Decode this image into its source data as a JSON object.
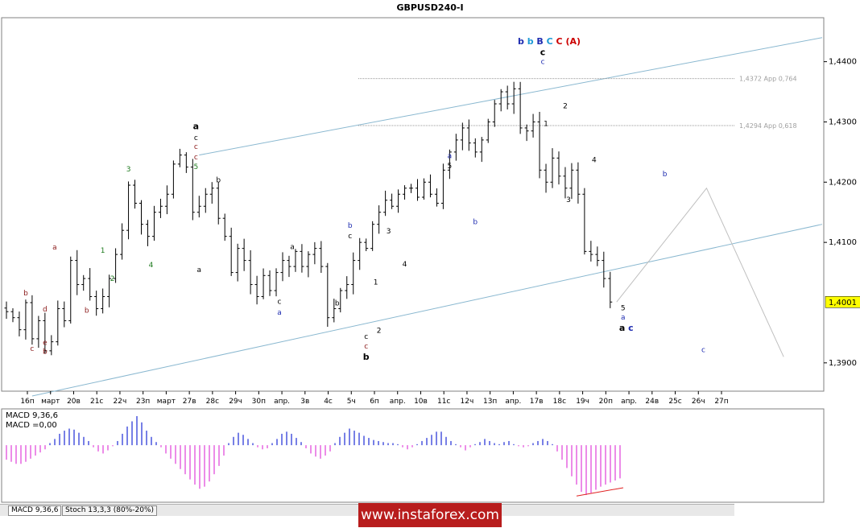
{
  "window": {
    "title": "GBPUSD240-I"
  },
  "tabs": [
    {
      "label": "MACD 9,36,6",
      "active": true
    },
    {
      "label": "Stoch 13,3,3 (80%-20%)",
      "active": false
    }
  ],
  "watermark": "www.instaforex.com",
  "colors": {
    "candle": "#000000",
    "channel": "#8ab8d0",
    "forecast": "#bfbfbf",
    "level": "#9a9a9a",
    "macd_pos": "#1d2bd6",
    "macd_neg": "#e040d8",
    "divergence": "#e02020",
    "price_label_bg": "#ffff00",
    "frame": "#808080",
    "wave_green": "#1e7a1e",
    "wave_brown": "#8b1a1a",
    "wave_blue": "#1d2bb0",
    "wave_red": "#cc0000",
    "wave_cyan": "#1d9ad6"
  },
  "chart_data": [
    {
      "type": "candlestick",
      "title": "GBPUSD240-I",
      "ylim": [
        1.3853,
        1.4473
      ],
      "y_ticks": [
        "1,4400",
        "1,4300",
        "1,4200",
        "1,4100",
        "1,3900"
      ],
      "x_ticks": [
        "16п",
        "март",
        "20в",
        "21с",
        "22ч",
        "23п",
        "март",
        "27в",
        "28с",
        "29ч",
        "30п",
        "апр.",
        "3в",
        "4с",
        "5ч",
        "6п",
        "апр.",
        "10в",
        "11с",
        "12ч",
        "13п",
        "апр.",
        "17в",
        "18с",
        "19ч",
        "20п",
        "апр.",
        "24в",
        "25с",
        "26ч",
        "27п"
      ],
      "current_price": "1,4001",
      "grid": false,
      "series": [
        {
          "name": "price",
          "close_path": [
            1.3985,
            1.3975,
            1.3955,
            1.4,
            1.394,
            1.397,
            1.392,
            1.3935,
            1.399,
            1.397,
            1.407,
            1.403,
            1.404,
            1.401,
            1.399,
            1.401,
            1.404,
            1.408,
            1.412,
            1.4195,
            1.4165,
            1.413,
            1.411,
            1.415,
            1.416,
            1.418,
            1.423,
            1.4245,
            1.4225,
            1.415,
            1.416,
            1.418,
            1.419,
            1.414,
            1.411,
            1.405,
            1.409,
            1.407,
            1.403,
            1.401,
            1.4045,
            1.402,
            1.405,
            1.407,
            1.406,
            1.4085,
            1.406,
            1.408,
            1.409,
            1.406,
            1.3975,
            1.399,
            1.402,
            1.403,
            1.407,
            1.41,
            1.409,
            1.413,
            1.415,
            1.417,
            1.416,
            1.418,
            1.419,
            1.419,
            1.4175,
            1.42,
            1.418,
            1.4165,
            1.422,
            1.425,
            1.427,
            1.429,
            1.4265,
            1.425,
            1.427,
            1.43,
            1.433,
            1.435,
            1.433,
            1.4355,
            1.429,
            1.4285,
            1.43,
            1.422,
            1.42,
            1.424,
            1.421,
            1.419,
            1.422,
            1.418,
            1.4085,
            1.408,
            1.407,
            1.404,
            1.4001
          ]
        },
        {
          "name": "forecast",
          "points": [
            [
              95,
              1.4001
            ],
            [
              109,
              1.419
            ],
            [
              121,
              1.391
            ]
          ]
        }
      ],
      "channel": {
        "upper": [
          [
            30,
            1.4245
          ],
          [
            127,
            1.444
          ]
        ],
        "lower": [
          [
            4,
            1.3845
          ],
          [
            127,
            1.413
          ]
        ]
      },
      "levels": [
        {
          "label": "1,4372 App 0,764",
          "value": 1.4372
        },
        {
          "label": "1,4294 App 0,618",
          "value": 1.4294
        }
      ],
      "annotations": [
        {
          "text": "c",
          "x": 4,
          "y": 1.392,
          "color": "brown"
        },
        {
          "text": "b",
          "x": 3,
          "y": 1.4012,
          "color": "brown"
        },
        {
          "text": "d",
          "x": 6,
          "y": 1.3985,
          "color": "brown"
        },
        {
          "text": "e",
          "x": 6,
          "y": 1.393,
          "color": "brown"
        },
        {
          "text": "b",
          "x": 6,
          "y": 1.3915,
          "color": "brown"
        },
        {
          "text": "a",
          "x": 7.5,
          "y": 1.4088,
          "color": "brown"
        },
        {
          "text": "b",
          "x": 12.5,
          "y": 1.3983,
          "color": "brown"
        },
        {
          "text": "1",
          "x": 15,
          "y": 1.4083,
          "color": "green"
        },
        {
          "text": "2",
          "x": 16.5,
          "y": 1.4036,
          "color": "green"
        },
        {
          "text": "3",
          "x": 19,
          "y": 1.4218,
          "color": "green"
        },
        {
          "text": "4",
          "x": 22.5,
          "y": 1.4059,
          "color": "green"
        },
        {
          "text": "a",
          "x": 29.5,
          "y": 1.4288,
          "color": "black",
          "bold": true
        },
        {
          "text": "c",
          "x": 29.5,
          "y": 1.427,
          "color": "black"
        },
        {
          "text": "c",
          "x": 29.5,
          "y": 1.4255,
          "color": "brown"
        },
        {
          "text": "c",
          "x": 29.5,
          "y": 1.4238,
          "color": "brown"
        },
        {
          "text": "5",
          "x": 29.5,
          "y": 1.4222,
          "color": "green"
        },
        {
          "text": "b",
          "x": 33,
          "y": 1.42,
          "color": "black"
        },
        {
          "text": "a",
          "x": 30,
          "y": 1.4051,
          "color": "black"
        },
        {
          "text": "a",
          "x": 44.5,
          "y": 1.4089,
          "color": "black"
        },
        {
          "text": "c",
          "x": 42.5,
          "y": 1.3998,
          "color": "black"
        },
        {
          "text": "a",
          "x": 42.5,
          "y": 1.398,
          "color": "blue"
        },
        {
          "text": "b",
          "x": 51.5,
          "y": 1.3995,
          "color": "black"
        },
        {
          "text": "b",
          "x": 53.5,
          "y": 1.4124,
          "color": "blue"
        },
        {
          "text": "c",
          "x": 53.5,
          "y": 1.4107,
          "color": "black"
        },
        {
          "text": "1",
          "x": 57.5,
          "y": 1.403,
          "color": "black"
        },
        {
          "text": "2",
          "x": 58,
          "y": 1.395,
          "color": "black"
        },
        {
          "text": "c",
          "x": 56,
          "y": 1.394,
          "color": "black"
        },
        {
          "text": "c",
          "x": 56,
          "y": 1.3924,
          "color": "brown"
        },
        {
          "text": "b",
          "x": 56,
          "y": 1.3905,
          "color": "black",
          "bold": true
        },
        {
          "text": "3",
          "x": 59.5,
          "y": 1.4115,
          "color": "black"
        },
        {
          "text": "4",
          "x": 62,
          "y": 1.406,
          "color": "black"
        },
        {
          "text": "a",
          "x": 69,
          "y": 1.424,
          "color": "blue"
        },
        {
          "text": "5",
          "x": 69,
          "y": 1.4223,
          "color": "black"
        },
        {
          "text": "b",
          "x": 73,
          "y": 1.413,
          "color": "blue"
        },
        {
          "text": "b b B C C (A)",
          "x": 84.5,
          "y": 1.4429,
          "color": "mixed",
          "bold": true
        },
        {
          "text": "c",
          "x": 83.5,
          "y": 1.4411,
          "color": "black",
          "bold": true
        },
        {
          "text": "c",
          "x": 83.5,
          "y": 1.4396,
          "color": "blue"
        },
        {
          "text": "2",
          "x": 87,
          "y": 1.4323,
          "color": "black"
        },
        {
          "text": "1",
          "x": 84,
          "y": 1.4293,
          "color": "black"
        },
        {
          "text": "3",
          "x": 87.5,
          "y": 1.4167,
          "color": "black"
        },
        {
          "text": "4",
          "x": 91.5,
          "y": 1.4233,
          "color": "black"
        },
        {
          "text": "5",
          "x": 96,
          "y": 1.3987,
          "color": "black"
        },
        {
          "text": "a",
          "x": 96,
          "y": 1.3972,
          "color": "blue"
        },
        {
          "text": "a c",
          "x": 96.5,
          "y": 1.3953,
          "color": "mixed",
          "bold": true
        },
        {
          "text": "b",
          "x": 102.5,
          "y": 1.421,
          "color": "blue"
        },
        {
          "text": "c",
          "x": 108.5,
          "y": 1.3918,
          "color": "blue"
        }
      ]
    },
    {
      "type": "bar",
      "title": "MACD 9,36,6",
      "subtitle": "MACD =0,00",
      "values": [
        -0.0014,
        -0.0016,
        -0.0018,
        -0.0018,
        -0.0016,
        -0.0013,
        -0.001,
        -0.0007,
        -0.0004,
        0.0002,
        0.0006,
        0.0011,
        0.0014,
        0.0016,
        0.0015,
        0.0012,
        0.0008,
        0.0004,
        -0.0002,
        -0.0006,
        -0.0008,
        -0.0005,
        -0.0001,
        0.0004,
        0.0011,
        0.0018,
        0.0023,
        0.0028,
        0.0022,
        0.0014,
        0.0008,
        0.0003,
        -0.0002,
        -0.0008,
        -0.0013,
        -0.0018,
        -0.0023,
        -0.0028,
        -0.0033,
        -0.0038,
        -0.0042,
        -0.004,
        -0.0035,
        -0.0028,
        -0.002,
        -0.001,
        0.0002,
        0.0008,
        0.0012,
        0.001,
        0.0006,
        0.0002,
        -0.0002,
        -0.0004,
        -0.0003,
        0.0002,
        0.0006,
        0.0011,
        0.0013,
        0.0011,
        0.0007,
        0.0003,
        -0.0003,
        -0.0008,
        -0.0011,
        -0.0013,
        -0.001,
        -0.0006,
        0.0002,
        0.0008,
        0.0012,
        0.0016,
        0.0014,
        0.0012,
        0.0009,
        0.0007,
        0.0005,
        0.0004,
        0.0003,
        0.0002,
        0.0002,
        0.0001,
        -0.0002,
        -0.0004,
        -0.0002,
        0.0001,
        0.0004,
        0.0007,
        0.001,
        0.0013,
        0.0013,
        0.0008,
        0.0004,
        0.0001,
        -0.0002,
        -0.0005,
        -0.0002,
        0.0001,
        0.0003,
        0.0006,
        0.0004,
        0.0002,
        0.0001,
        0.0003,
        0.0004,
        0.0001,
        -0.0001,
        -0.0002,
        -0.0001,
        0.0002,
        0.0004,
        0.0006,
        0.0004,
        0.0001,
        -0.0006,
        -0.0014,
        -0.0022,
        -0.003,
        -0.0038,
        -0.0045,
        -0.0048,
        -0.0046,
        -0.0043,
        -0.004,
        -0.0038,
        -0.0036,
        -0.0034,
        -0.0032
      ],
      "ylim": [
        -0.0055,
        0.0035
      ]
    }
  ]
}
